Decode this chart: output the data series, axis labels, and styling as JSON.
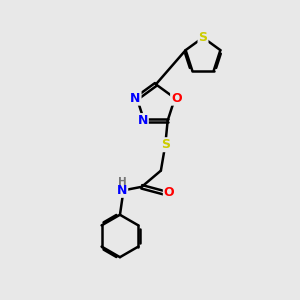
{
  "bg_color": "#e8e8e8",
  "atom_colors": {
    "S": "#cccc00",
    "O": "#ff0000",
    "N": "#0000ff",
    "H": "#777777",
    "C": "#000000"
  },
  "line_width": 1.8,
  "font_size": 8.5,
  "fig_width": 3.0,
  "fig_height": 3.0,
  "dpi": 100
}
